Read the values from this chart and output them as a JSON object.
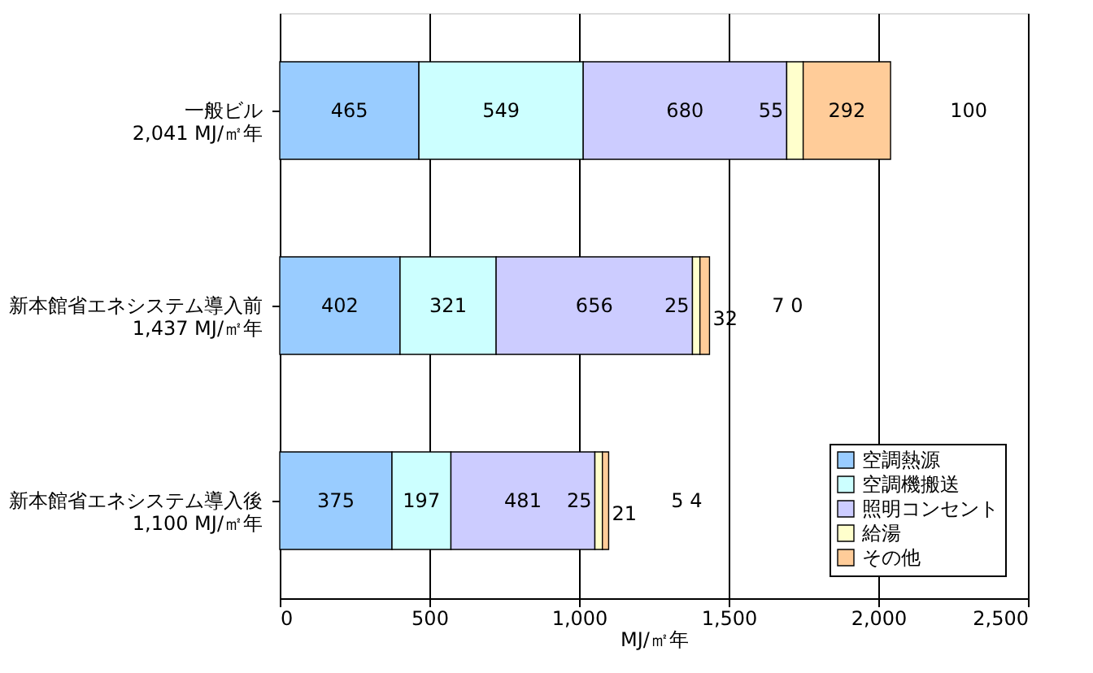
{
  "chart_data": {
    "type": "bar",
    "orientation": "horizontal",
    "stacked": true,
    "categories": [
      "一般ビル\n2,041  MJ/㎡年",
      "新本館省エネシステム導入前\n1,437  MJ/㎡年",
      "新本館省エネシステム導入後\n1,100  MJ/㎡年"
    ],
    "series": [
      {
        "name": "空調熱源",
        "color": "#99ccff",
        "values": [
          465,
          402,
          375
        ]
      },
      {
        "name": "空調機搬送",
        "color": "#ccffff",
        "values": [
          549,
          321,
          197
        ]
      },
      {
        "name": "照明コンセント",
        "color": "#ccccff",
        "values": [
          680,
          656,
          481
        ]
      },
      {
        "name": "給湯",
        "color": "#ffffcc",
        "values": [
          55,
          25,
          25
        ]
      },
      {
        "name": "その他",
        "color": "#ffcc99",
        "values": [
          292,
          32,
          21
        ]
      }
    ],
    "xlabel": "MJ/㎡年",
    "xlim": [
      0,
      2500
    ],
    "xticks": [
      0,
      500,
      {
        "value": 1000,
        "label": "1,000"
      },
      {
        "value": 1500,
        "label": "1,500"
      },
      {
        "value": 2000,
        "label": "2,000"
      },
      {
        "value": 2500,
        "label": "2,500"
      }
    ],
    "grid": "x",
    "legend": "bottom right",
    "data_labels": true,
    "annotations": [
      "100",
      "7 0",
      "5 4"
    ]
  }
}
